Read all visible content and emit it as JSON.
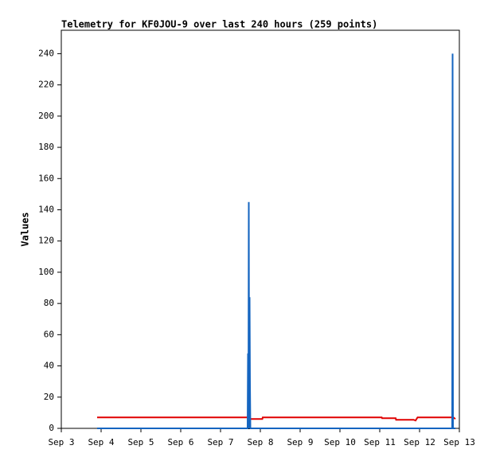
{
  "chart_data": {
    "type": "line",
    "title": "Telemetry for KF0JOU-9 over last 240 hours (259 points)",
    "y_label": "Values",
    "xlim": [
      3,
      13
    ],
    "xticks": [
      {
        "value": 3,
        "label": "Sep 3"
      },
      {
        "value": 4,
        "label": "Sep 4"
      },
      {
        "value": 5,
        "label": "Sep 5"
      },
      {
        "value": 6,
        "label": "Sep 6"
      },
      {
        "value": 7,
        "label": "Sep 7"
      },
      {
        "value": 8,
        "label": "Sep 8"
      },
      {
        "value": 9,
        "label": "Sep 9"
      },
      {
        "value": 10,
        "label": "Sep 10"
      },
      {
        "value": 11,
        "label": "Sep 11"
      },
      {
        "value": 12,
        "label": "Sep 12"
      },
      {
        "value": 13,
        "label": "Sep 13"
      }
    ],
    "ylim": [
      0,
      255
    ],
    "yticks": [
      0,
      20,
      40,
      60,
      80,
      100,
      120,
      140,
      160,
      180,
      200,
      220,
      240
    ],
    "series": [
      {
        "color": "#000000",
        "x": [
          3.9,
          12.9
        ],
        "values": [
          0,
          0
        ]
      },
      {
        "color": "#e00000",
        "x": [
          3.9,
          7.7,
          7.71,
          8.05,
          8.06,
          11.05,
          11.06,
          11.4,
          11.41,
          11.85,
          11.9,
          11.95,
          12.85,
          12.9
        ],
        "values": [
          7,
          7,
          6,
          6,
          7,
          7,
          6.5,
          6.5,
          5.5,
          5.5,
          5,
          7,
          7,
          6
        ]
      },
      {
        "color": "#1565c0",
        "x": [
          3.9,
          7.68,
          7.69,
          7.7,
          7.71,
          7.72,
          7.73,
          7.74,
          7.75,
          12.82,
          12.83,
          12.84,
          12.9
        ],
        "values": [
          0,
          0,
          48,
          0,
          145,
          0,
          84,
          28,
          0,
          0,
          240,
          0,
          0
        ]
      }
    ]
  }
}
